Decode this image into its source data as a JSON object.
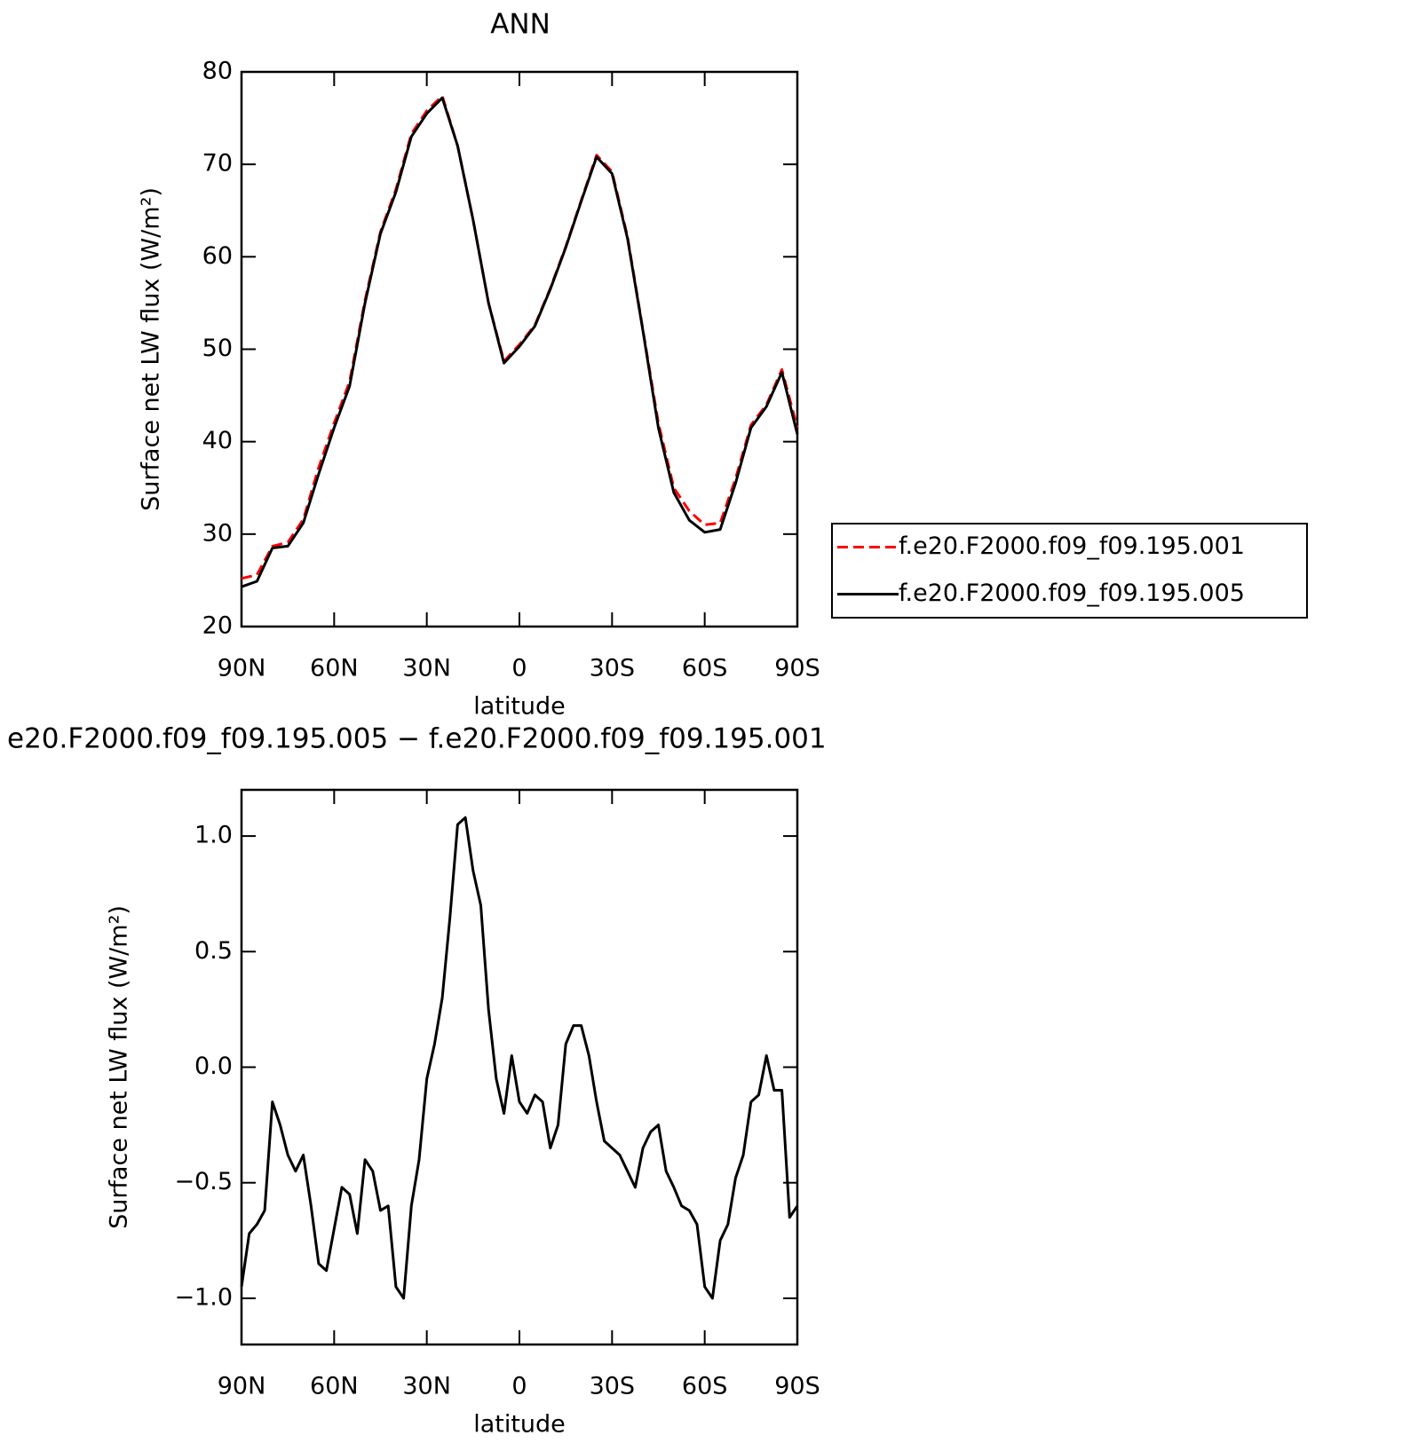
{
  "chart_data": [
    {
      "type": "line",
      "title": "ANN",
      "ylabel": "Surface net LW flux (W/m²)",
      "xlabel": "latitude",
      "x": [
        90,
        85,
        80,
        75,
        70,
        65,
        60,
        55,
        50,
        45,
        40,
        35,
        30,
        25,
        20,
        15,
        10,
        5,
        0,
        -5,
        -10,
        -15,
        -20,
        -25,
        -30,
        -35,
        -40,
        -45,
        -50,
        -55,
        -60,
        -65,
        -70,
        -75,
        -80,
        -85,
        -90
      ],
      "series": [
        {
          "name": "f.e20.F2000.f09_f09.195.001",
          "color": "#ff0000",
          "dashed": true,
          "values": [
            25.2,
            25.6,
            28.7,
            29.1,
            31.6,
            37.2,
            42,
            46.5,
            55.3,
            62.7,
            67.3,
            73.3,
            75.8,
            77.4,
            72,
            64,
            55,
            48.7,
            50.5,
            52.6,
            56.6,
            61.1,
            66.1,
            71,
            69.2,
            62.2,
            52.1,
            42,
            35,
            32.5,
            31,
            31.2,
            36,
            41.8,
            44,
            47.8,
            41.5
          ]
        },
        {
          "name": "f.e20.F2000.f09_f09.195.005",
          "color": "#000000",
          "dashed": false,
          "values": [
            24.3,
            24.9,
            28.5,
            28.7,
            31.2,
            36.5,
            41.5,
            46,
            55,
            62.5,
            67,
            73,
            75.5,
            77.2,
            72,
            64,
            55,
            48.5,
            50.3,
            52.5,
            56.5,
            61,
            66,
            70.8,
            69,
            62,
            52,
            41.5,
            34.5,
            31.5,
            30.2,
            30.5,
            35.5,
            41.5,
            43.8,
            47.5,
            40.8
          ]
        }
      ],
      "xlim": [
        90,
        -90
      ],
      "xticks": [
        {
          "value": 90,
          "label": "90N"
        },
        {
          "value": 60,
          "label": "60N"
        },
        {
          "value": 30,
          "label": "30N"
        },
        0,
        {
          "value": -30,
          "label": "30S"
        },
        {
          "value": -60,
          "label": "60S"
        },
        {
          "value": -90,
          "label": "90S"
        }
      ],
      "ylim": [
        20,
        80
      ],
      "yticks": [
        20,
        30,
        40,
        50,
        60,
        70,
        80
      ],
      "legend": "right"
    },
    {
      "type": "line",
      "title": "e20.F2000.f09_f09.195.005 − f.e20.F2000.f09_f09.195.001",
      "ylabel": "Surface net LW flux (W/m²)",
      "xlabel": "latitude",
      "x": [
        90,
        87.5,
        85,
        82.5,
        80,
        77.5,
        75,
        72.5,
        70,
        67.5,
        65,
        62.5,
        60,
        57.5,
        55,
        52.5,
        50,
        47.5,
        45,
        42.5,
        40,
        37.5,
        35,
        32.5,
        30,
        27.5,
        25,
        22.5,
        20,
        17.5,
        15,
        12.5,
        10,
        7.5,
        5,
        2.5,
        0,
        -2.5,
        -5,
        -7.5,
        -10,
        -12.5,
        -15,
        -17.5,
        -20,
        -22.5,
        -25,
        -27.5,
        -30,
        -32.5,
        -35,
        -37.5,
        -40,
        -42.5,
        -45,
        -47.5,
        -50,
        -52.5,
        -55,
        -57.5,
        -60,
        -62.5,
        -65,
        -67.5,
        -70,
        -72.5,
        -75,
        -77.5,
        -80,
        -82.5,
        -85,
        -87.5,
        -90
      ],
      "series": [
        {
          "color": "#000000",
          "dashed": false,
          "values": [
            -0.95,
            -0.72,
            -0.68,
            -0.62,
            -0.15,
            -0.25,
            -0.38,
            -0.45,
            -0.38,
            -0.6,
            -0.85,
            -0.88,
            -0.7,
            -0.52,
            -0.55,
            -0.72,
            -0.4,
            -0.45,
            -0.62,
            -0.6,
            -0.95,
            -1.0,
            -0.6,
            -0.4,
            -0.05,
            0.1,
            0.3,
            0.65,
            1.05,
            1.08,
            0.85,
            0.7,
            0.25,
            -0.05,
            -0.2,
            0.05,
            -0.15,
            -0.2,
            -0.12,
            -0.15,
            -0.35,
            -0.25,
            0.1,
            0.18,
            0.18,
            0.05,
            -0.15,
            -0.32,
            -0.35,
            -0.38,
            -0.45,
            -0.52,
            -0.35,
            -0.28,
            -0.25,
            -0.45,
            -0.52,
            -0.6,
            -0.62,
            -0.68,
            -0.95,
            -1.0,
            -0.75,
            -0.68,
            -0.48,
            -0.38,
            -0.15,
            -0.12,
            0.05,
            -0.1,
            -0.1,
            -0.65,
            -0.6
          ]
        }
      ],
      "xlim": [
        90,
        -90
      ],
      "xticks": [
        {
          "value": 90,
          "label": "90N"
        },
        {
          "value": 60,
          "label": "60N"
        },
        {
          "value": 30,
          "label": "30N"
        },
        0,
        {
          "value": -30,
          "label": "30S"
        },
        {
          "value": -60,
          "label": "60S"
        },
        {
          "value": -90,
          "label": "90S"
        }
      ],
      "ylim": [
        -1.2,
        1.2
      ],
      "yticks": [
        {
          "value": -1.0,
          "label": "−1.0"
        },
        {
          "value": -0.5,
          "label": "−0.5"
        },
        {
          "value": 0.0,
          "label": "0.0"
        },
        0.5,
        {
          "value": 1.0,
          "label": "1.0"
        }
      ]
    }
  ]
}
